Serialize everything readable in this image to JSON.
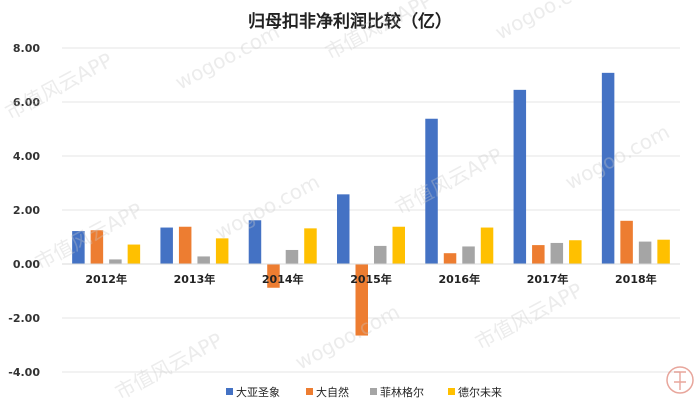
{
  "chart_data": {
    "type": "bar",
    "title": "归母扣非净利润比较（亿）",
    "categories": [
      "2012年",
      "2013年",
      "2014年",
      "2015年",
      "2016年",
      "2017年",
      "2018年"
    ],
    "series": [
      {
        "name": "大亚圣象",
        "color": "#4472c4",
        "values": [
          1.22,
          1.35,
          1.62,
          2.58,
          5.38,
          6.45,
          7.08
        ]
      },
      {
        "name": "大自然",
        "color": "#ed7d31",
        "values": [
          1.25,
          1.38,
          -0.88,
          -2.65,
          0.4,
          0.7,
          1.6
        ]
      },
      {
        "name": "菲林格尔",
        "color": "#a5a5a5",
        "values": [
          0.17,
          0.28,
          0.52,
          0.67,
          0.65,
          0.78,
          0.83
        ]
      },
      {
        "name": "德尔未来",
        "color": "#ffc000",
        "values": [
          0.72,
          0.95,
          1.32,
          1.38,
          1.35,
          0.88,
          0.9
        ]
      }
    ],
    "ylim": [
      -4,
      8
    ],
    "yticks": [
      "8.00",
      "6.00",
      "4.00",
      "2.00",
      "0.00",
      "-2.00",
      "-4.00"
    ],
    "xlabel": "",
    "ylabel": "",
    "grid": true,
    "legend_position": "bottom"
  },
  "watermark": {
    "text": "市值风云APP",
    "site": "wogoo.com",
    "logo": "市值风云"
  }
}
